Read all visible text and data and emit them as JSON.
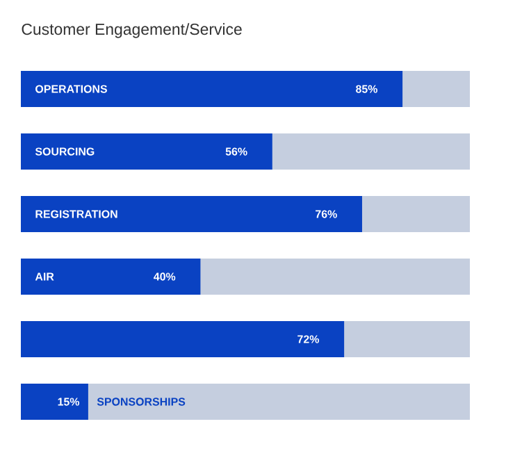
{
  "chart_data": {
    "type": "bar",
    "orientation": "horizontal",
    "title": "Customer Engagement/Service",
    "categories": [
      "OPERATIONS",
      "SOURCING",
      "REGISTRATION",
      "AIR",
      null,
      "SPONSORSHIPS"
    ],
    "values": [
      85,
      56,
      76,
      40,
      72,
      15
    ],
    "value_labels": [
      "85%",
      "56%",
      "76%",
      "40%",
      "72%",
      "15%"
    ],
    "color": "#0a42c2",
    "xlim": [
      0,
      100
    ],
    "tick_labels": false
  }
}
